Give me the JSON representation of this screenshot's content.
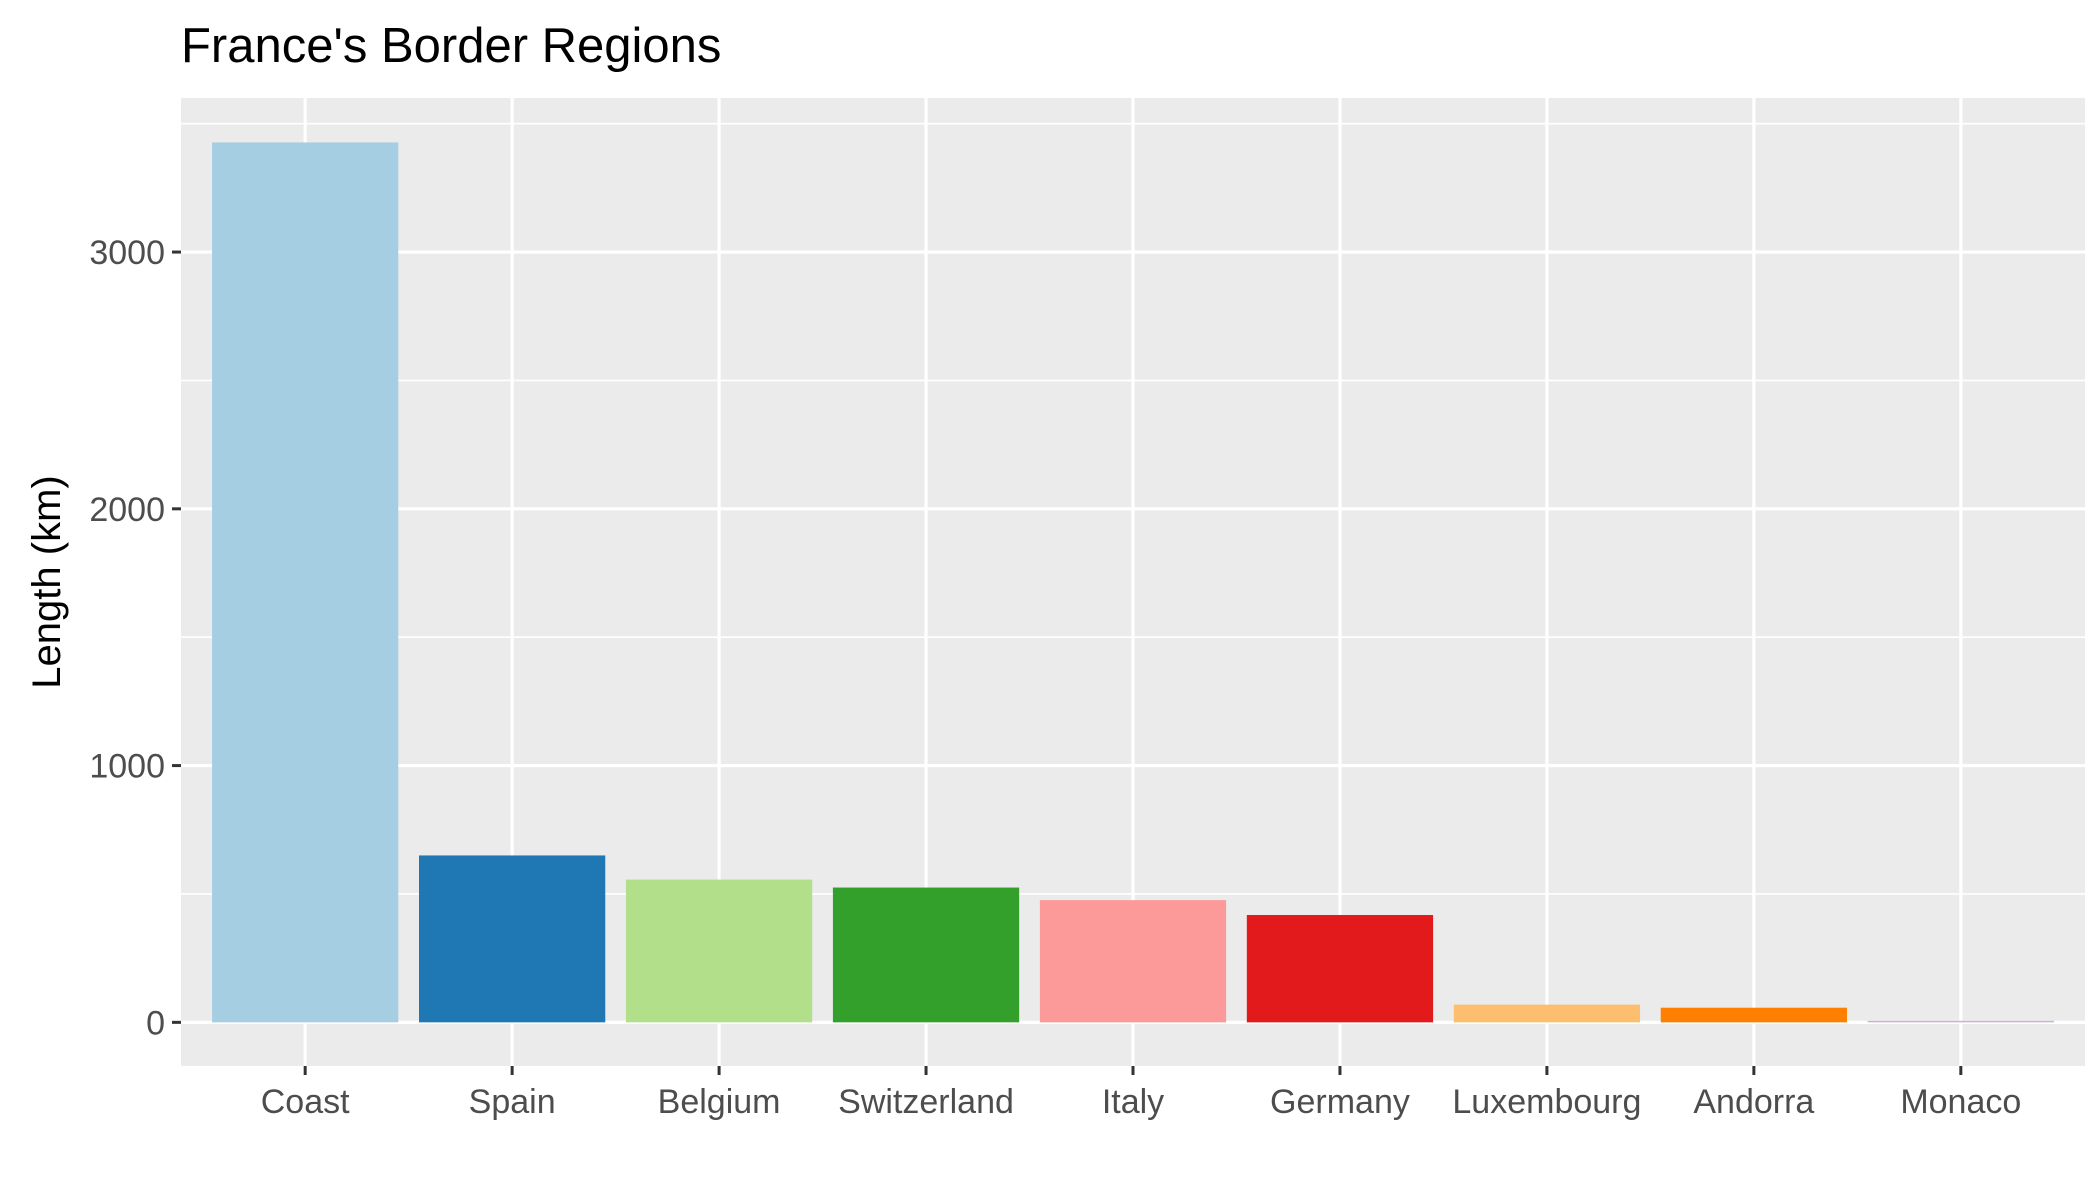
{
  "chart_data": {
    "type": "bar",
    "title": "France's Border Regions",
    "xlabel": "",
    "ylabel": "Length (km)",
    "categories": [
      "Coast",
      "Spain",
      "Belgium",
      "Switzerland",
      "Italy",
      "Germany",
      "Luxembourg",
      "Andorra",
      "Monaco"
    ],
    "values": [
      3427,
      650,
      556,
      525,
      476,
      418,
      69,
      57,
      6
    ],
    "colors": [
      "#a6cee3",
      "#1f78b4",
      "#b2df8a",
      "#33a02c",
      "#fb9a99",
      "#e31a1c",
      "#fdbf6f",
      "#ff7f00",
      "#cab2d6"
    ],
    "yticks": [
      0,
      1000,
      2000,
      3000
    ],
    "ylim": [
      -170,
      3600
    ],
    "grid": true,
    "legend": "none",
    "panel_background": "#ebebeb",
    "grid_color": "#ffffff"
  }
}
